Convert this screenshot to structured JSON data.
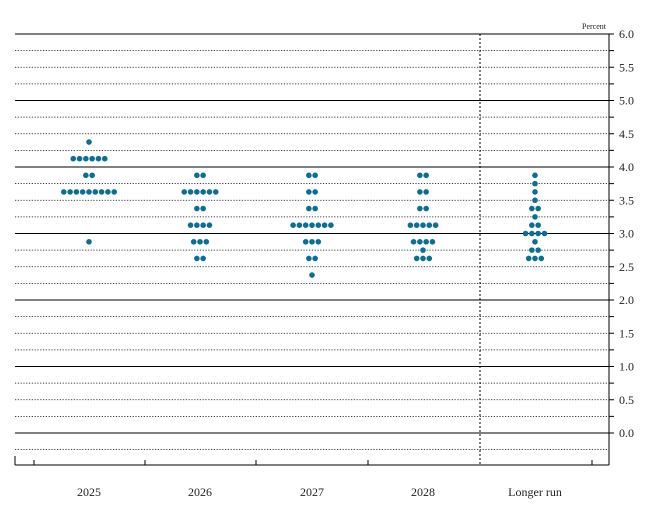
{
  "chart_data": {
    "type": "scatter",
    "subtype": "dot-plot",
    "unit_label": "Percent",
    "ylim": [
      -0.25,
      6.0
    ],
    "y_ticks": [
      "6.0",
      "5.5",
      "5.0",
      "4.5",
      "4.0",
      "3.5",
      "3.0",
      "2.5",
      "2.0",
      "1.5",
      "1.0",
      "0.5",
      "0.0"
    ],
    "y_tick_values": [
      6.0,
      5.5,
      5.0,
      4.5,
      4.0,
      3.5,
      3.0,
      2.5,
      2.0,
      1.5,
      1.0,
      0.5,
      0.0
    ],
    "grid": "dotted minor every 0.25, solid major every 1.0",
    "categories": [
      "2025",
      "2026",
      "2027",
      "2028",
      "Longer run"
    ],
    "dot_color": "#0a6e96",
    "series": [
      {
        "category": "2025",
        "points": [
          {
            "y": 4.375,
            "count": 1
          },
          {
            "y": 4.125,
            "count": 6
          },
          {
            "y": 3.875,
            "count": 2
          },
          {
            "y": 3.625,
            "count": 9
          },
          {
            "y": 2.875,
            "count": 1
          }
        ]
      },
      {
        "category": "2026",
        "points": [
          {
            "y": 3.875,
            "count": 2
          },
          {
            "y": 3.625,
            "count": 6
          },
          {
            "y": 3.375,
            "count": 2
          },
          {
            "y": 3.125,
            "count": 4
          },
          {
            "y": 2.875,
            "count": 3
          },
          {
            "y": 2.625,
            "count": 2
          }
        ]
      },
      {
        "category": "2027",
        "points": [
          {
            "y": 3.875,
            "count": 2
          },
          {
            "y": 3.625,
            "count": 2
          },
          {
            "y": 3.375,
            "count": 2
          },
          {
            "y": 3.125,
            "count": 7
          },
          {
            "y": 2.875,
            "count": 3
          },
          {
            "y": 2.625,
            "count": 2
          },
          {
            "y": 2.375,
            "count": 1
          }
        ]
      },
      {
        "category": "2028",
        "points": [
          {
            "y": 3.875,
            "count": 2
          },
          {
            "y": 3.625,
            "count": 2
          },
          {
            "y": 3.375,
            "count": 2
          },
          {
            "y": 3.125,
            "count": 5
          },
          {
            "y": 2.875,
            "count": 4
          },
          {
            "y": 2.75,
            "count": 1
          },
          {
            "y": 2.625,
            "count": 3
          }
        ]
      },
      {
        "category": "Longer run",
        "points": [
          {
            "y": 3.875,
            "count": 1
          },
          {
            "y": 3.75,
            "count": 1
          },
          {
            "y": 3.625,
            "count": 1
          },
          {
            "y": 3.5,
            "count": 1
          },
          {
            "y": 3.375,
            "count": 2
          },
          {
            "y": 3.25,
            "count": 1
          },
          {
            "y": 3.125,
            "count": 2
          },
          {
            "y": 3.0,
            "count": 4
          },
          {
            "y": 2.875,
            "count": 1
          },
          {
            "y": 2.75,
            "count": 2
          },
          {
            "y": 2.625,
            "count": 3
          }
        ]
      }
    ]
  }
}
